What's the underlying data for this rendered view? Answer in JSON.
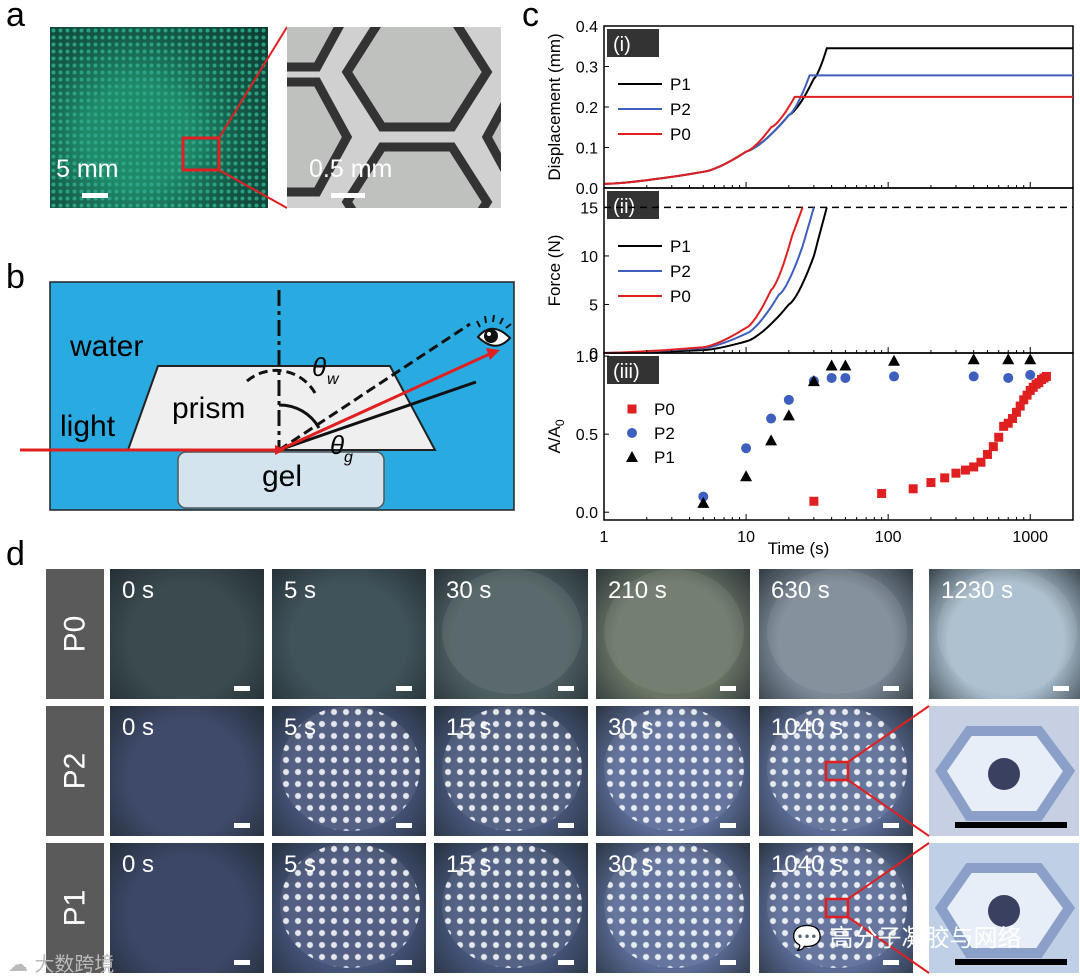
{
  "panel_a": {
    "letter": "a",
    "left_scale": "5 mm",
    "right_scale": "0.5 mm"
  },
  "panel_b": {
    "letter": "b",
    "labels": {
      "water": "water",
      "prism": "prism",
      "light": "light",
      "gel": "gel",
      "theta_w": "θ",
      "theta_w_sub": "w",
      "theta_g": "θ",
      "theta_g_sub": "g"
    },
    "colors": {
      "water": "#29abe2",
      "ray": "#e02020"
    }
  },
  "panel_c": {
    "letter": "c",
    "colors": {
      "P1": "#000000",
      "P2": "#3f5fbf",
      "P0": "#e02020"
    }
  },
  "chart_data": [
    {
      "type": "line",
      "panel": "(i)",
      "ylabel": "Displacement (mm)",
      "xscale": "log",
      "xlim": [
        1,
        2000
      ],
      "ylim": [
        0,
        0.4
      ],
      "yticks": [
        "0.0",
        "0.1",
        "0.2",
        "0.3",
        "0.4"
      ],
      "series": [
        {
          "name": "P1",
          "x": [
            1,
            5,
            10,
            20,
            30,
            37,
            100,
            2000
          ],
          "y": [
            0.01,
            0.04,
            0.09,
            0.18,
            0.27,
            0.345,
            0.345,
            0.345
          ]
        },
        {
          "name": "P2",
          "x": [
            1,
            5,
            10,
            20,
            28,
            100,
            2000
          ],
          "y": [
            0.01,
            0.04,
            0.09,
            0.18,
            0.278,
            0.278,
            0.278
          ]
        },
        {
          "name": "P0",
          "x": [
            1,
            5,
            10,
            15,
            22,
            100,
            2000
          ],
          "y": [
            0.01,
            0.04,
            0.09,
            0.15,
            0.225,
            0.225,
            0.225
          ]
        }
      ]
    },
    {
      "type": "line",
      "panel": "(ii)",
      "ylabel": "Force (N)",
      "xscale": "log",
      "xlim": [
        1,
        2000
      ],
      "ylim": [
        0,
        17
      ],
      "yticks": [
        "0",
        "5",
        "10",
        "15"
      ],
      "threshold": 15,
      "series": [
        {
          "name": "P1",
          "x": [
            1,
            5,
            10,
            20,
            30,
            37
          ],
          "y": [
            0,
            0.3,
            1.2,
            5,
            10,
            15
          ]
        },
        {
          "name": "P2",
          "x": [
            1,
            5,
            10,
            17,
            25,
            30
          ],
          "y": [
            0,
            0.5,
            2,
            6,
            11,
            15
          ]
        },
        {
          "name": "P0",
          "x": [
            1,
            5,
            10,
            15,
            21,
            25
          ],
          "y": [
            0,
            0.6,
            2.6,
            6.5,
            12,
            15
          ]
        }
      ]
    },
    {
      "type": "scatter",
      "panel": "(iii)",
      "ylabel": "A/A0",
      "xlabel": "Time (s)",
      "xscale": "log",
      "xlim": [
        1,
        2000
      ],
      "ylim": [
        -0.05,
        1.02
      ],
      "yticks": [
        "0.0",
        "0.5",
        "1.0"
      ],
      "xticks": [
        "1",
        "10",
        "100",
        "1000"
      ],
      "series": [
        {
          "name": "P0",
          "marker": "square",
          "x": [
            30,
            90,
            150,
            200,
            250,
            300,
            350,
            400,
            450,
            500,
            550,
            600,
            650,
            700,
            750,
            800,
            850,
            900,
            950,
            1000,
            1050,
            1100,
            1150,
            1200,
            1250,
            1300
          ],
          "y": [
            0.07,
            0.12,
            0.15,
            0.19,
            0.22,
            0.25,
            0.27,
            0.29,
            0.32,
            0.37,
            0.42,
            0.48,
            0.55,
            0.57,
            0.6,
            0.64,
            0.68,
            0.72,
            0.75,
            0.78,
            0.8,
            0.82,
            0.83,
            0.85,
            0.86,
            0.87
          ]
        },
        {
          "name": "P2",
          "marker": "circle",
          "x": [
            5,
            10,
            15,
            20,
            30,
            40,
            50,
            110,
            400,
            700,
            1000
          ],
          "y": [
            0.1,
            0.41,
            0.6,
            0.72,
            0.84,
            0.86,
            0.86,
            0.87,
            0.87,
            0.86,
            0.88
          ]
        },
        {
          "name": "P1",
          "marker": "triangle",
          "x": [
            5,
            10,
            15,
            20,
            30,
            40,
            50,
            110,
            400,
            700,
            1000
          ],
          "y": [
            0.06,
            0.23,
            0.46,
            0.62,
            0.84,
            0.94,
            0.94,
            0.97,
            0.98,
            0.98,
            0.98
          ]
        }
      ]
    }
  ],
  "panel_d": {
    "letter": "d",
    "rows": [
      {
        "label": "P0",
        "times": [
          "0 s",
          "5 s",
          "30 s",
          "210 s",
          "630 s",
          "1230 s"
        ]
      },
      {
        "label": "P2",
        "times": [
          "0 s",
          "5 s",
          "15 s",
          "30 s",
          "1040 s"
        ]
      },
      {
        "label": "P1",
        "times": [
          "0 s",
          "5 s",
          "15 s",
          "30 s",
          "1040 s"
        ]
      }
    ]
  },
  "watermarks": {
    "left": "大数跨境",
    "right": "高分子凝胶与网络"
  }
}
